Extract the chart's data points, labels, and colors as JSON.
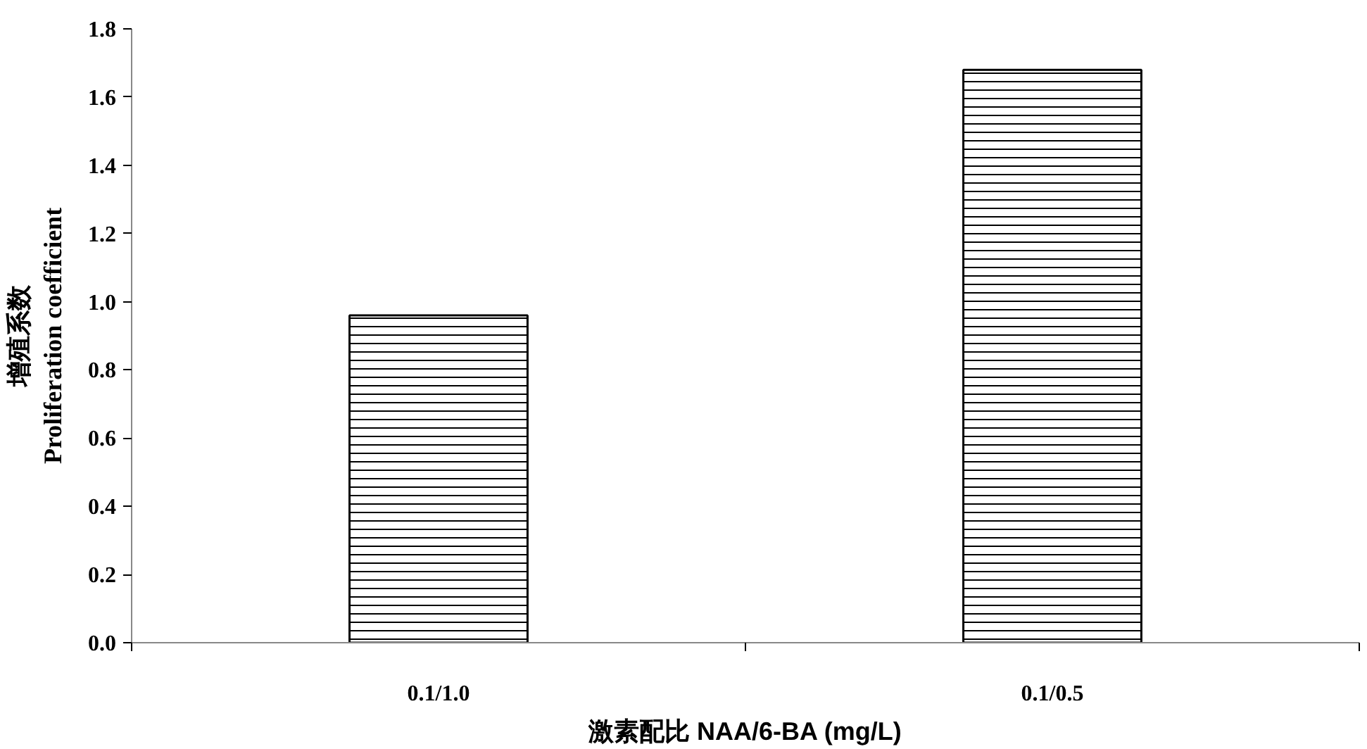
{
  "chart_data": {
    "type": "bar",
    "xlabel": "激素配比 NAA/6-BA (mg/L)",
    "ylabel": "增殖系数\nProliferation coefficient",
    "categories": [
      "0.1/1.0",
      "0.1/0.5"
    ],
    "values": [
      0.96,
      1.68
    ],
    "color": "#ffffff",
    "ylim": [
      0,
      1.8
    ],
    "yticks": [
      {
        "value": 0,
        "label": "0.0"
      },
      0.2,
      0.4,
      0.6,
      0.8,
      {
        "value": 1.0,
        "label": "1.0"
      },
      1.2,
      1.4,
      1.6,
      1.8
    ],
    "grid": false
  }
}
